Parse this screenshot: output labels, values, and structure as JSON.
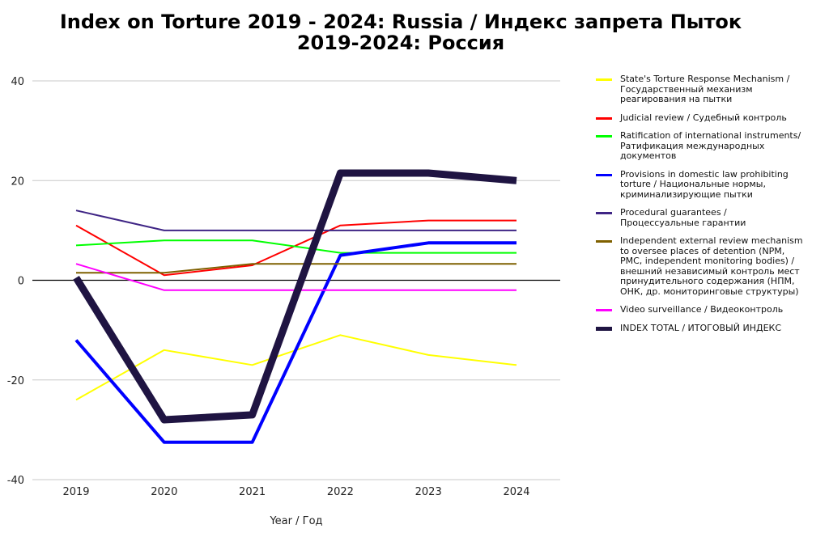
{
  "title_lines": [
    "Index on Torture 2019 - 2024: Russia / Индекс запрета Пыток",
    "2019-2024: Россия"
  ],
  "chart_data": {
    "type": "line",
    "title": "Index on Torture 2019 - 2024: Russia / Индекс запрета Пыток 2019-2024: Россия",
    "xlabel": "Year / Год",
    "ylabel": "",
    "x": [
      "2019",
      "2020",
      "2021",
      "2022",
      "2023",
      "2024"
    ],
    "ylim": [
      -40,
      40
    ],
    "yticks": [
      40,
      20,
      0,
      -20,
      -40
    ],
    "grid": true,
    "legend_position": "right",
    "series": [
      {
        "name": "State's Torture Response Mechanism / Государственный механизм реагирования на пытки",
        "color": "#ffff00",
        "width": 2,
        "values": [
          -24,
          -14,
          -17,
          -11,
          -15,
          -17
        ]
      },
      {
        "name": "Judicial review / Судебный контроль",
        "color": "#ff0000",
        "width": 2,
        "values": [
          11,
          1,
          3,
          11,
          12,
          12
        ]
      },
      {
        "name": "Ratification of international instruments/ Ратификация международных документов",
        "color": "#00ff00",
        "width": 2,
        "values": [
          7,
          8,
          8,
          5.5,
          5.5,
          5.5
        ]
      },
      {
        "name": "Provisions in domestic law prohibiting torture / Национальные нормы, криминализирующие пытки",
        "color": "#0000ff",
        "width": 4,
        "values": [
          -12,
          -32.5,
          -32.5,
          5,
          7.5,
          7.5
        ]
      },
      {
        "name": "Procedural guarantees / Процессуальные гарантии",
        "color": "#3f2585",
        "width": 2,
        "values": [
          14,
          10,
          10,
          10,
          10,
          10
        ]
      },
      {
        "name": "Independent external review mechanism to oversee places of detention (NPM, PMC, independent monitoring bodies) / внешний независимый контроль мест принудительного содержания (НПМ, ОНК, др. мониторинговые структуры)",
        "color": "#7f6000",
        "width": 2,
        "values": [
          1.5,
          1.5,
          3.3,
          3.3,
          3.3,
          3.3
        ]
      },
      {
        "name": "Video surveillance / Видеоконтроль",
        "color": "#ff00ff",
        "width": 2,
        "values": [
          3.3,
          -2,
          -2,
          -2,
          -2,
          -2
        ]
      },
      {
        "name": "INDEX TOTAL /  ИТОГОВЫЙ ИНДЕКС",
        "color": "#1f1442",
        "width": 9,
        "values": [
          0.5,
          -28,
          -27,
          21.5,
          21.5,
          20
        ]
      }
    ]
  }
}
